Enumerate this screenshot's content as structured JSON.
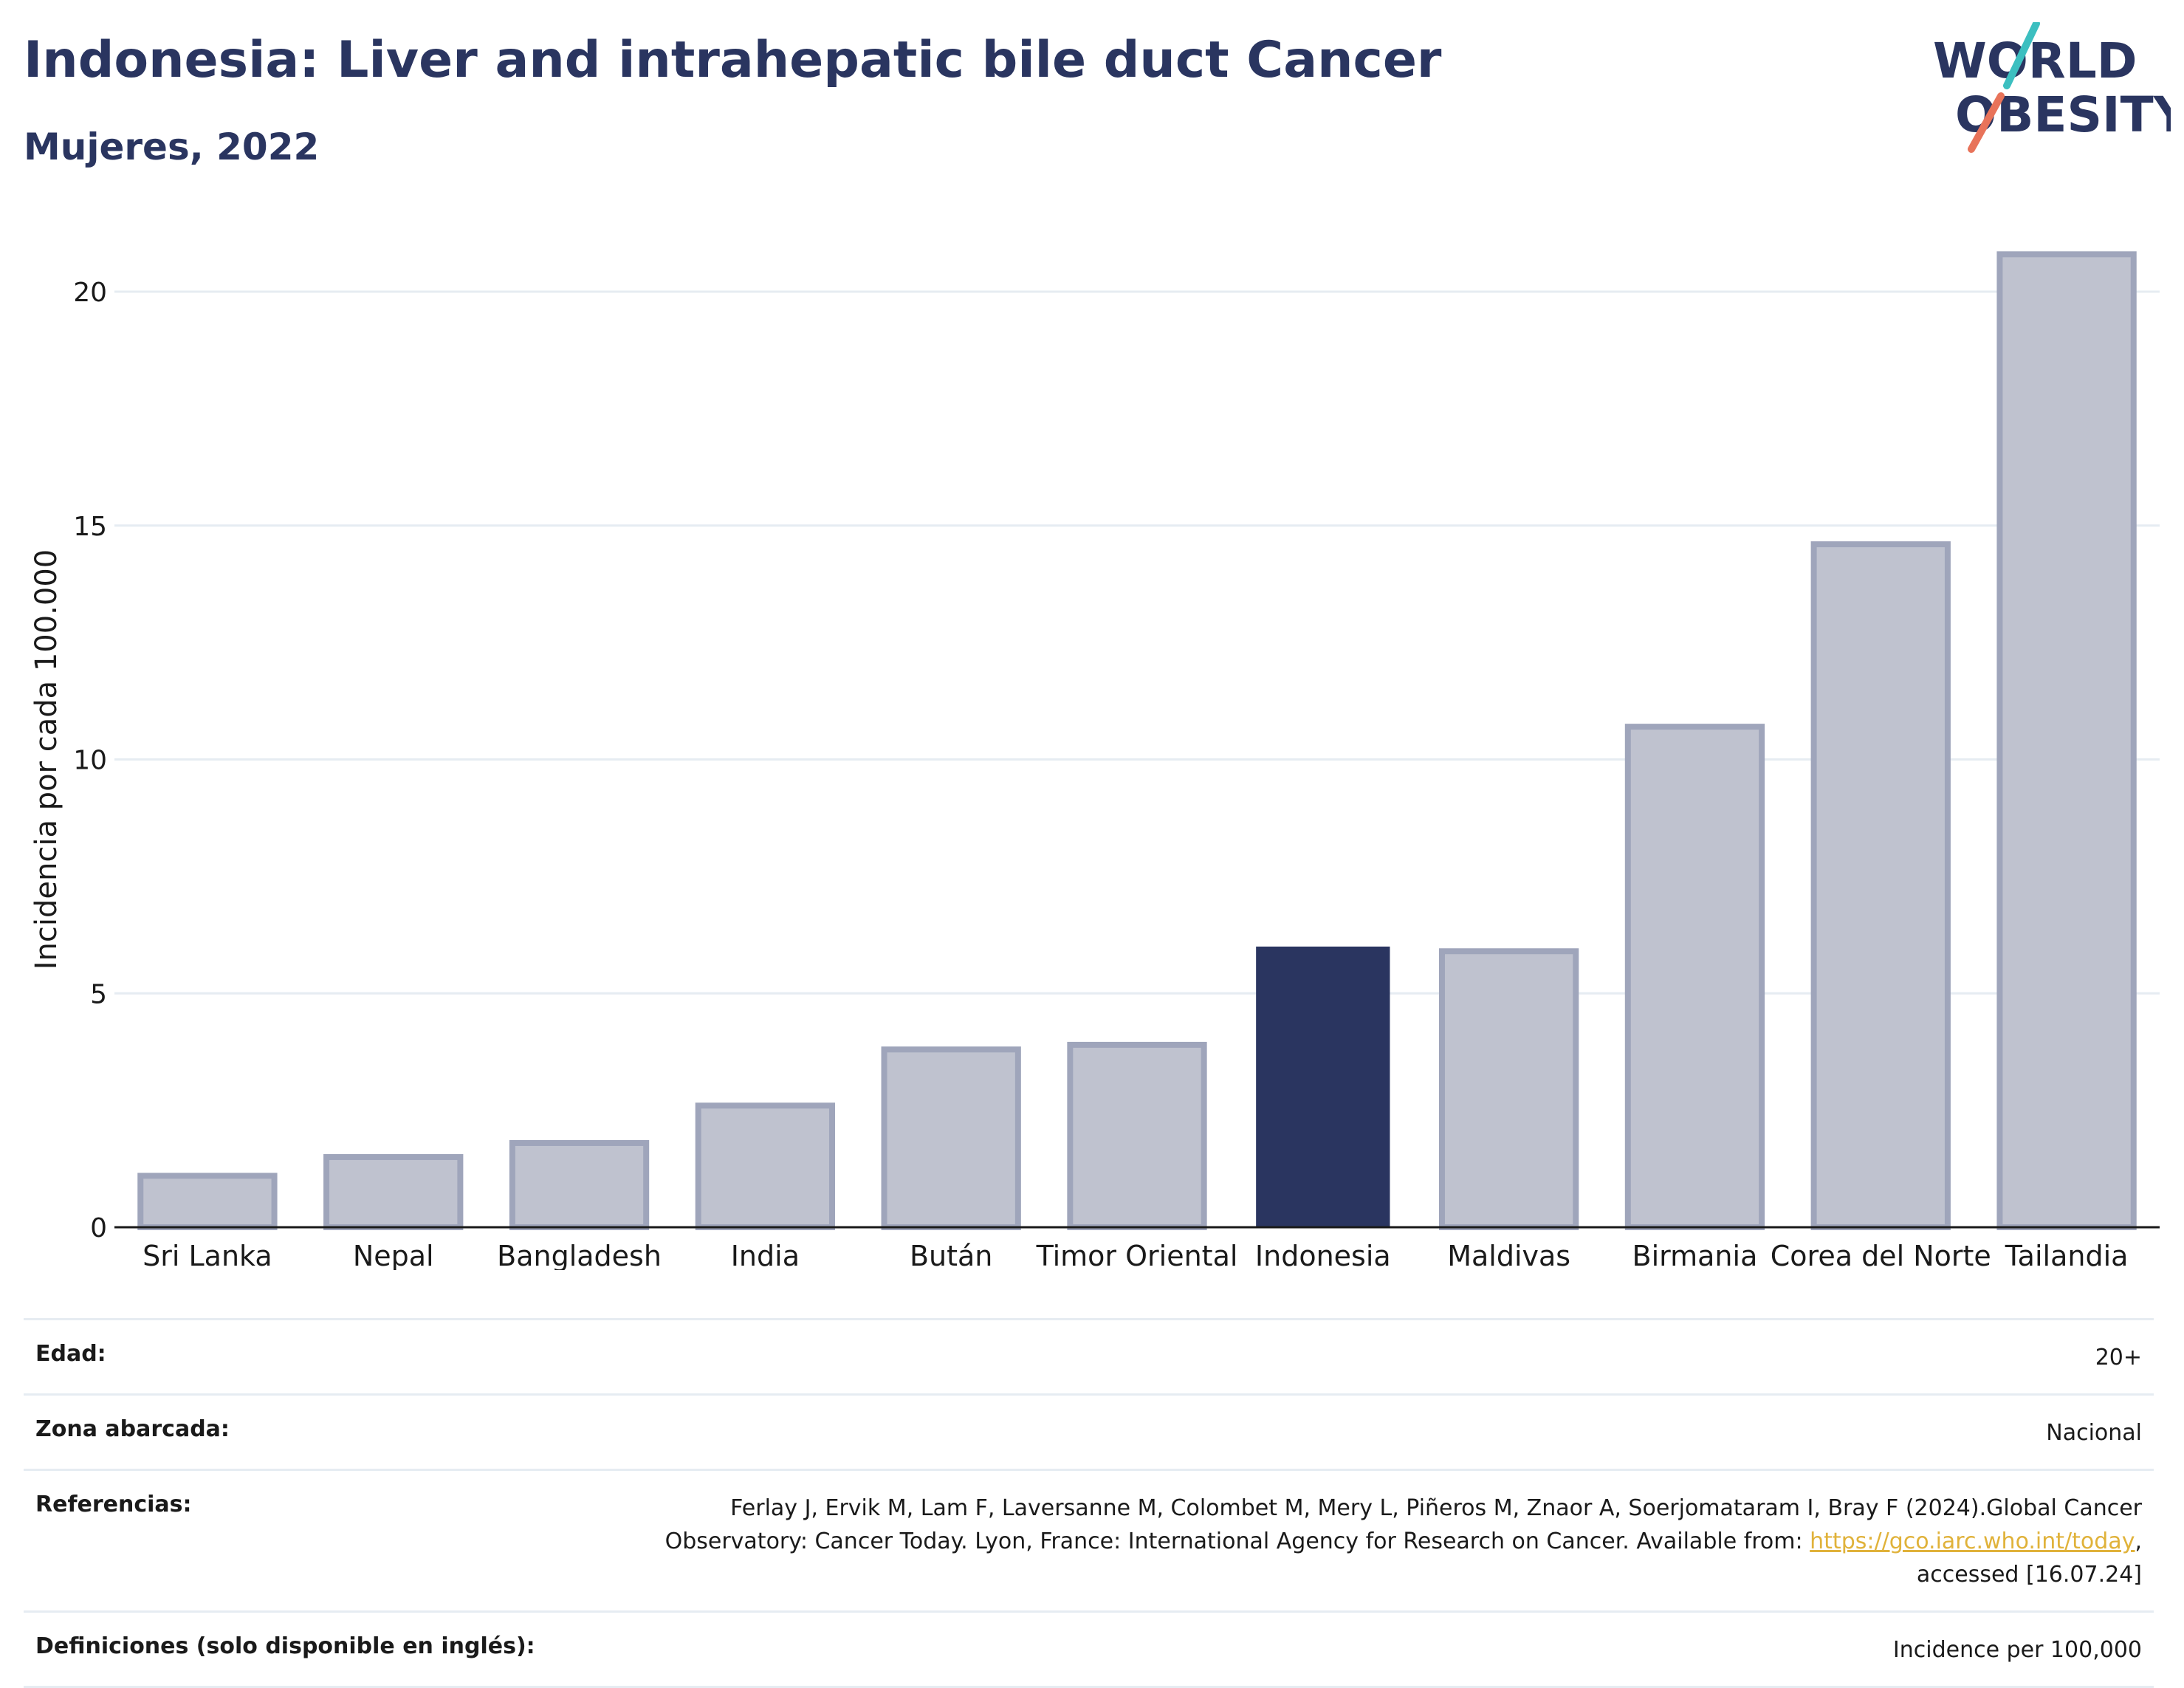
{
  "header": {
    "title": "Indonesia: Liver and intrahepatic bile duct Cancer",
    "subtitle": "Mujeres, 2022",
    "logo_line1": "WORLD",
    "logo_line2": "OBESITY"
  },
  "colors": {
    "highlight": "#2a3560",
    "bar": "#bfc2cf",
    "bar_border": "#9fa5bb",
    "grid": "#e6ecf2",
    "logo_teal": "#3cbfc0",
    "logo_coral": "#e8735a",
    "link": "#e0b23a"
  },
  "chart_data": {
    "type": "bar",
    "ylabel": "Incidencia por cada 100.000",
    "xlabel": "",
    "ylim": [
      0,
      22
    ],
    "yticks": [
      0,
      5,
      10,
      15,
      20
    ],
    "grid": true,
    "highlight": "Indonesia",
    "categories": [
      "Sri Lanka",
      "Nepal",
      "Bangladesh",
      "India",
      "Bután",
      "Timor Oriental",
      "Indonesia",
      "Maldivas",
      "Birmania",
      "Corea del Norte",
      "Tailandia"
    ],
    "values": [
      1.1,
      1.5,
      1.8,
      2.6,
      3.8,
      3.9,
      6.0,
      5.9,
      10.7,
      14.6,
      20.8
    ]
  },
  "info": {
    "rows": [
      {
        "label": "Edad:",
        "value": "20+"
      },
      {
        "label": "Zona abarcada:",
        "value": "Nacional"
      }
    ],
    "references": {
      "label": "Referencias:",
      "text_before": "Ferlay J, Ervik M, Lam F, Laversanne M, Colombet M, Mery L, Piñeros M, Znaor A, Soerjomataram I, Bray F (2024).Global Cancer Observatory: Cancer Today. Lyon, France: International Agency for Research on Cancer. Available from: ",
      "link": "https://gco.iarc.who.int/today",
      "text_after": ", accessed [16.07.24]"
    },
    "definitions": {
      "label": "Definiciones (solo disponible en inglés):",
      "value": "Incidence per 100,000"
    }
  }
}
